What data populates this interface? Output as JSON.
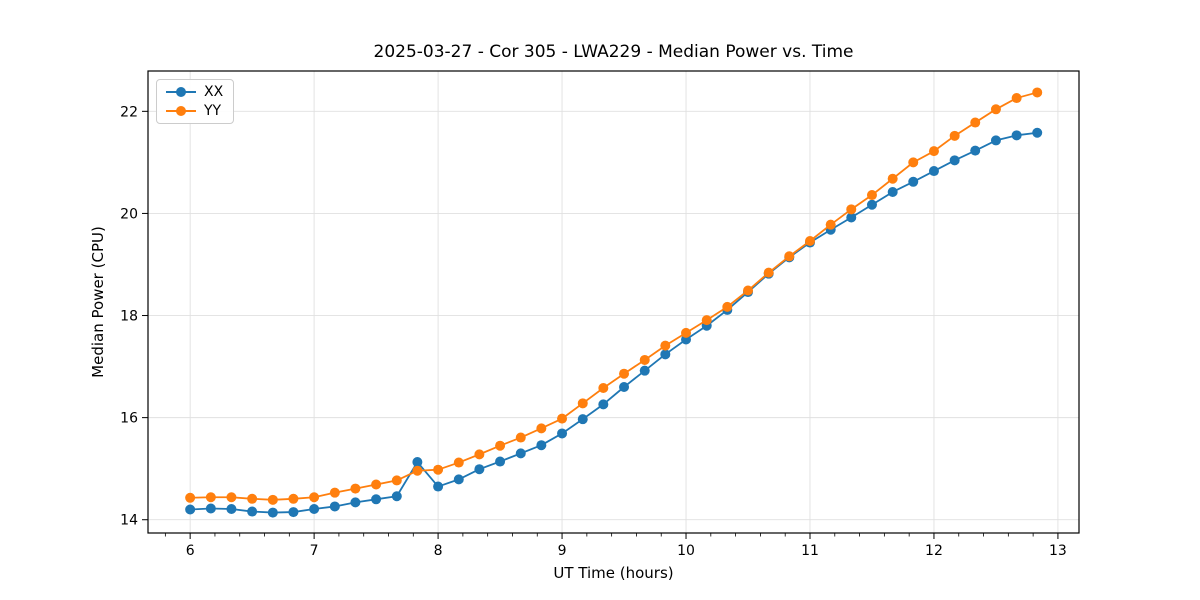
{
  "chart_data": {
    "type": "line",
    "title": "2025-03-27 - Cor 305 - LWA229 - Median Power vs. Time",
    "xlabel": "UT Time (hours)",
    "ylabel": "Median Power (CPU)",
    "x": [
      6.0,
      6.167,
      6.333,
      6.5,
      6.667,
      6.833,
      7.0,
      7.167,
      7.333,
      7.5,
      7.667,
      7.833,
      8.0,
      8.167,
      8.333,
      8.5,
      8.667,
      8.833,
      9.0,
      9.167,
      9.333,
      9.5,
      9.667,
      9.833,
      10.0,
      10.167,
      10.333,
      10.5,
      10.667,
      10.833,
      11.0,
      11.167,
      11.333,
      11.5,
      11.667,
      11.833,
      12.0,
      12.167,
      12.333,
      12.5,
      12.667,
      12.833
    ],
    "series": [
      {
        "name": "XX",
        "color": "#1f77b4",
        "marker": "circle",
        "values": [
          14.2,
          14.22,
          14.21,
          14.16,
          14.14,
          14.15,
          14.21,
          14.26,
          14.34,
          14.4,
          14.46,
          15.13,
          14.65,
          14.79,
          14.99,
          15.14,
          15.3,
          15.46,
          15.69,
          15.97,
          16.26,
          16.6,
          16.92,
          17.24,
          17.53,
          17.8,
          18.11,
          18.46,
          18.82,
          19.14,
          19.43,
          19.68,
          19.92,
          20.17,
          20.42,
          20.62,
          20.83,
          21.04,
          21.23,
          21.43,
          21.53,
          21.58
        ]
      },
      {
        "name": "YY",
        "color": "#ff7f0e",
        "marker": "circle",
        "values": [
          14.43,
          14.44,
          14.44,
          14.41,
          14.39,
          14.41,
          14.44,
          14.53,
          14.61,
          14.69,
          14.77,
          14.96,
          14.98,
          15.12,
          15.28,
          15.45,
          15.61,
          15.79,
          15.98,
          16.28,
          16.58,
          16.86,
          17.13,
          17.41,
          17.66,
          17.91,
          18.17,
          18.49,
          18.84,
          19.16,
          19.46,
          19.78,
          20.08,
          20.36,
          20.68,
          21.0,
          21.22,
          21.52,
          21.78,
          22.04,
          22.26,
          22.37
        ]
      }
    ],
    "xlim": [
      5.66,
      13.17
    ],
    "ylim": [
      13.74,
      22.79
    ],
    "xticks": [
      6,
      7,
      8,
      9,
      10,
      11,
      12,
      13
    ],
    "yticks": [
      14,
      16,
      18,
      20,
      22
    ],
    "x_minor_step": 0.2,
    "grid": true,
    "legend_position": "upper left",
    "grid_color": "#e0e0e0",
    "spine_color": "#000000",
    "tick_label_color": "#000000"
  }
}
